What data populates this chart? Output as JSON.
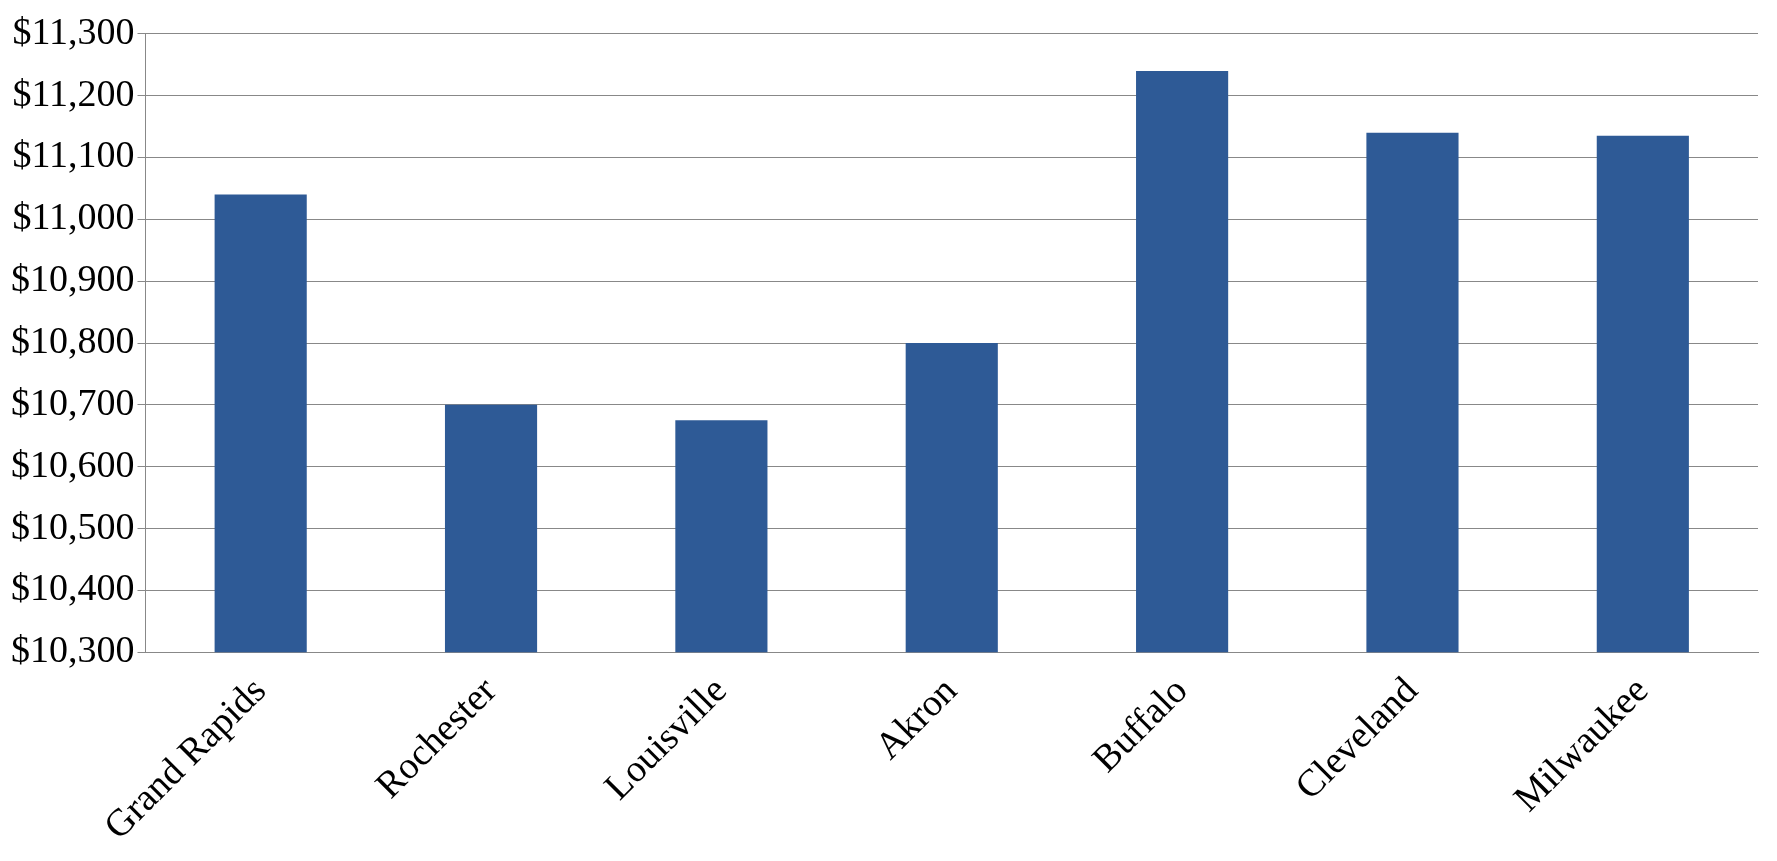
{
  "chart_data": {
    "type": "bar",
    "categories": [
      "Grand Rapids",
      "Rochester",
      "Louisville",
      "Akron",
      "Buffalo",
      "Cleveland",
      "Milwaukee"
    ],
    "values": [
      11040,
      10700,
      10675,
      10800,
      11240,
      11140,
      11135
    ],
    "color": "#2e5a96",
    "ylim": [
      10300,
      11300
    ],
    "yticks": [
      {
        "value": 10300,
        "label": "$10,300"
      },
      {
        "value": 10400,
        "label": "$10,400"
      },
      {
        "value": 10500,
        "label": "$10,500"
      },
      {
        "value": 10600,
        "label": "$10,600"
      },
      {
        "value": 10700,
        "label": "$10,700"
      },
      {
        "value": 10800,
        "label": "$10,800"
      },
      {
        "value": 10900,
        "label": "$10,900"
      },
      {
        "value": 11000,
        "label": "$11,000"
      },
      {
        "value": 11100,
        "label": "$11,100"
      },
      {
        "value": 11200,
        "label": "$11,200"
      },
      {
        "value": 11300,
        "label": "$11,300"
      }
    ],
    "grid": "y",
    "legend": false
  }
}
